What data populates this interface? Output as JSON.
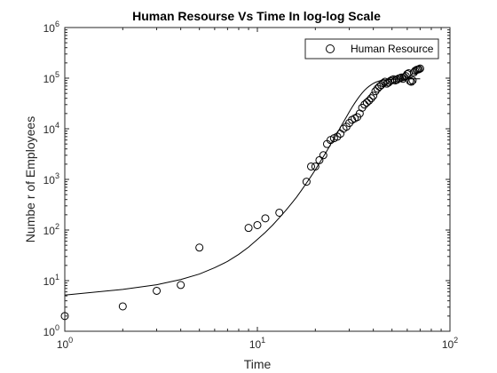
{
  "chart_data": {
    "type": "scatter",
    "title": "Human Resourse Vs Time In log-log Scale",
    "xlabel": "Time",
    "ylabel": "Numbe r of Employees",
    "xscale": "log",
    "yscale": "log",
    "xlim": [
      1,
      100
    ],
    "ylim": [
      1,
      1000000
    ],
    "x_ticks": [
      {
        "base": "10",
        "exp": "0",
        "value": 1
      },
      {
        "base": "10",
        "exp": "1",
        "value": 10
      },
      {
        "base": "10",
        "exp": "2",
        "value": 100
      }
    ],
    "y_ticks": [
      {
        "base": "10",
        "exp": "0",
        "value": 1
      },
      {
        "base": "10",
        "exp": "1",
        "value": 10
      },
      {
        "base": "10",
        "exp": "2",
        "value": 100
      },
      {
        "base": "10",
        "exp": "3",
        "value": 1000
      },
      {
        "base": "10",
        "exp": "4",
        "value": 10000
      },
      {
        "base": "10",
        "exp": "5",
        "value": 100000
      },
      {
        "base": "10",
        "exp": "6",
        "value": 1000000
      }
    ],
    "grid": false,
    "legend": {
      "position": "top-right",
      "entries": [
        "Human Resource"
      ]
    },
    "series": [
      {
        "name": "Human Resource",
        "marker": "circle",
        "points": [
          [
            1,
            2
          ],
          [
            2,
            3.1
          ],
          [
            3,
            6.3
          ],
          [
            4,
            8.2
          ],
          [
            5,
            45
          ],
          [
            9,
            110
          ],
          [
            10,
            125
          ],
          [
            11,
            170
          ],
          [
            13,
            220
          ],
          [
            18,
            900
          ],
          [
            19,
            1800
          ],
          [
            20,
            1800
          ],
          [
            21,
            2400
          ],
          [
            22,
            3000
          ],
          [
            23,
            5000
          ],
          [
            24,
            6000
          ],
          [
            25,
            6500
          ],
          [
            26,
            7000
          ],
          [
            27,
            8000
          ],
          [
            28,
            10000
          ],
          [
            29,
            11000
          ],
          [
            30,
            13000
          ],
          [
            31,
            15000
          ],
          [
            32,
            16000
          ],
          [
            33,
            17000
          ],
          [
            34,
            20000
          ],
          [
            35,
            26000
          ],
          [
            36,
            30000
          ],
          [
            37,
            33000
          ],
          [
            38,
            36000
          ],
          [
            39,
            40000
          ],
          [
            40,
            45000
          ],
          [
            41,
            55000
          ],
          [
            42,
            62000
          ],
          [
            43,
            68000
          ],
          [
            44,
            73000
          ],
          [
            45,
            80000
          ],
          [
            46,
            85000
          ],
          [
            47,
            78000
          ],
          [
            48,
            82000
          ],
          [
            49,
            88000
          ],
          [
            50,
            92000
          ],
          [
            51,
            95000
          ],
          [
            52,
            90000
          ],
          [
            53,
            93000
          ],
          [
            54,
            98000
          ],
          [
            55,
            100000
          ],
          [
            56,
            103000
          ],
          [
            57,
            97000
          ],
          [
            58,
            105000
          ],
          [
            59,
            110000
          ],
          [
            60,
            120000
          ],
          [
            61,
            125000
          ],
          [
            62,
            88000
          ],
          [
            63,
            85000
          ],
          [
            64,
            90000
          ],
          [
            65,
            130000
          ],
          [
            66,
            140000
          ],
          [
            67,
            145000
          ],
          [
            68,
            148000
          ],
          [
            69,
            150000
          ],
          [
            70,
            155000
          ]
        ]
      },
      {
        "name": "fit",
        "marker": "line",
        "points": [
          [
            1,
            5.2
          ],
          [
            2,
            6.7
          ],
          [
            3,
            8.3
          ],
          [
            4,
            10.5
          ],
          [
            5,
            13.5
          ],
          [
            6,
            18
          ],
          [
            7,
            24
          ],
          [
            8,
            33
          ],
          [
            9,
            46
          ],
          [
            10,
            65
          ],
          [
            11,
            90
          ],
          [
            12,
            125
          ],
          [
            13,
            175
          ],
          [
            14,
            240
          ],
          [
            15,
            330
          ],
          [
            16,
            450
          ],
          [
            17,
            620
          ],
          [
            18,
            850
          ],
          [
            19,
            1150
          ],
          [
            20,
            1550
          ],
          [
            21,
            2100
          ],
          [
            22,
            2800
          ],
          [
            23,
            3700
          ],
          [
            24,
            4900
          ],
          [
            25,
            6400
          ],
          [
            26,
            8300
          ],
          [
            27,
            10700
          ],
          [
            28,
            13600
          ],
          [
            29,
            17200
          ],
          [
            30,
            21500
          ],
          [
            31,
            26500
          ],
          [
            32,
            32000
          ],
          [
            33,
            38000
          ],
          [
            34,
            44500
          ],
          [
            35,
            51000
          ],
          [
            36,
            57500
          ],
          [
            37,
            63500
          ],
          [
            38,
            69000
          ],
          [
            39,
            74000
          ],
          [
            40,
            78500
          ],
          [
            41,
            82500
          ],
          [
            42,
            85500
          ],
          [
            43,
            88000
          ],
          [
            44,
            90000
          ],
          [
            45,
            91500
          ],
          [
            47,
            93500
          ],
          [
            50,
            95000
          ],
          [
            55,
            96000
          ],
          [
            60,
            96500
          ],
          [
            65,
            96800
          ],
          [
            70,
            97000
          ]
        ]
      }
    ]
  }
}
